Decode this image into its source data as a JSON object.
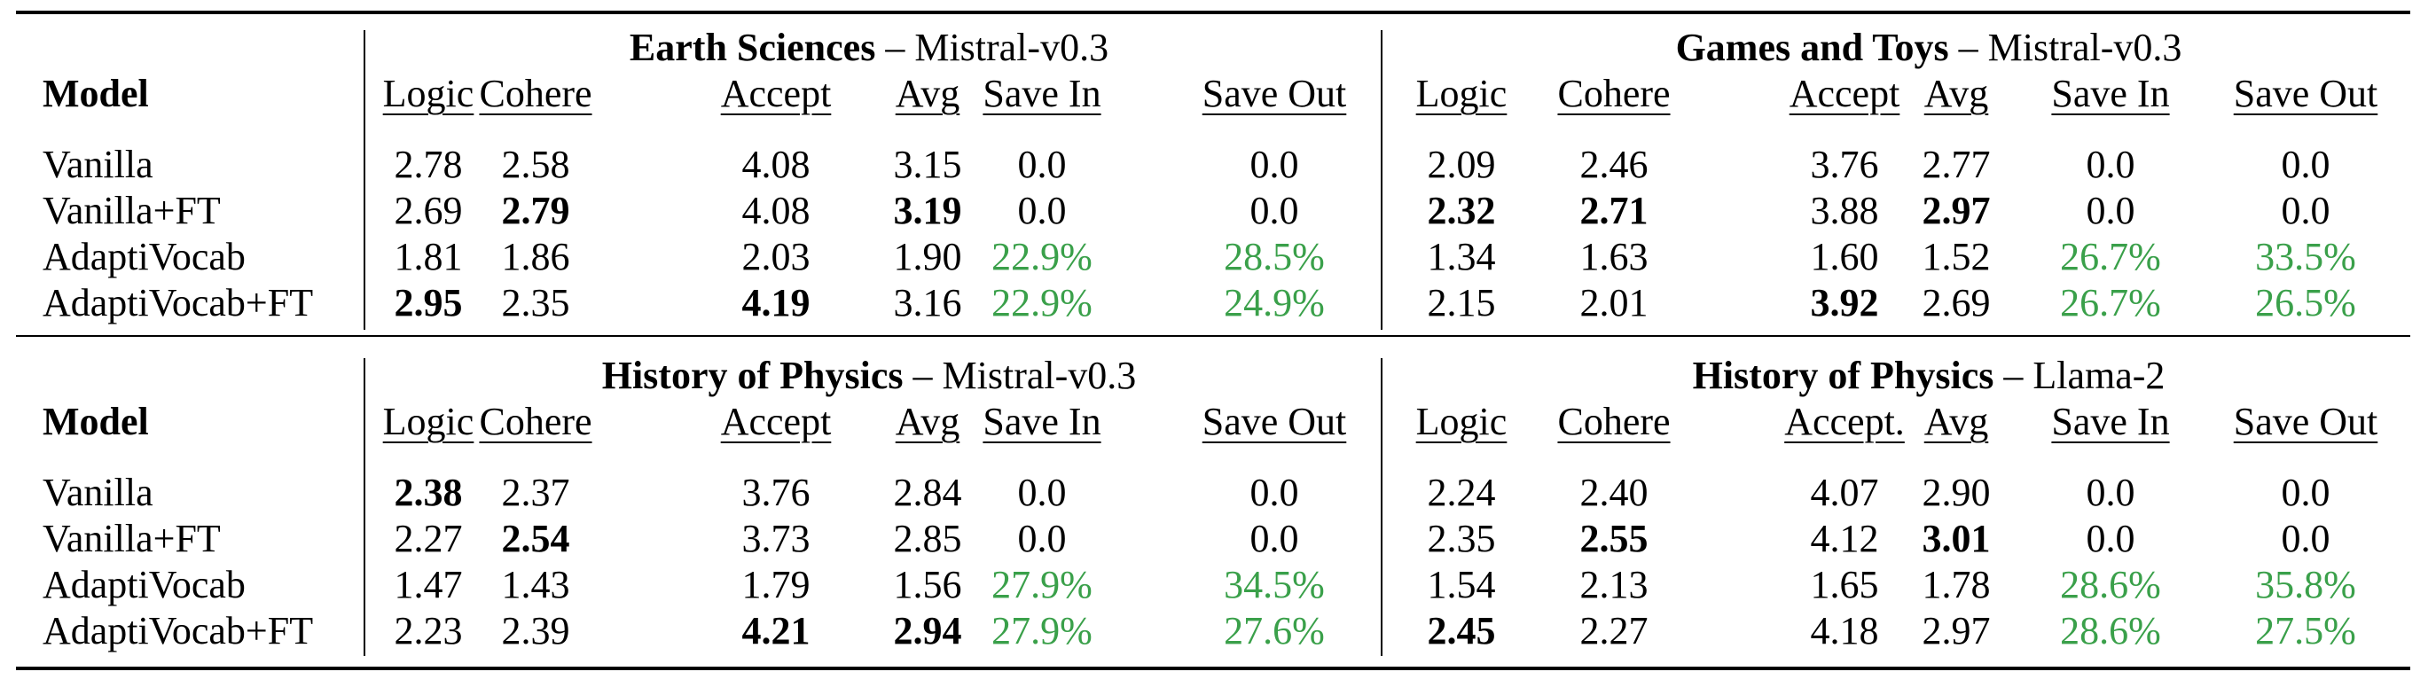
{
  "colors": {
    "green": "#3aa04a",
    "text": "#000000"
  },
  "row_header": "Model",
  "blocks": [
    {
      "panels": [
        {
          "title_bold": "Earth Sciences",
          "title_rest": " – Mistral-v0.3",
          "columns": [
            "Logic",
            "Cohere",
            "Accept",
            "Avg",
            "Save In",
            "Save Out"
          ],
          "rows": [
            [
              "2.78",
              "2.58",
              "4.08",
              "3.15",
              "0.0",
              "0.0"
            ],
            [
              "2.69",
              "2.79",
              "4.08",
              "3.19",
              "0.0",
              "0.0"
            ],
            [
              "1.81",
              "1.86",
              "2.03",
              "1.90",
              "22.9%",
              "28.5%"
            ],
            [
              "2.95",
              "2.35",
              "4.19",
              "3.16",
              "22.9%",
              "24.9%"
            ]
          ]
        },
        {
          "title_bold": "Games and Toys",
          "title_rest": " – Mistral-v0.3",
          "columns": [
            "Logic",
            "Cohere",
            "Accept",
            "Avg",
            "Save In",
            "Save Out"
          ],
          "rows": [
            [
              "2.09",
              "2.46",
              "3.76",
              "2.77",
              "0.0",
              "0.0"
            ],
            [
              "2.32",
              "2.71",
              "3.88",
              "2.97",
              "0.0",
              "0.0"
            ],
            [
              "1.34",
              "1.63",
              "1.60",
              "1.52",
              "26.7%",
              "33.5%"
            ],
            [
              "2.15",
              "2.01",
              "3.92",
              "2.69",
              "26.7%",
              "26.5%"
            ]
          ]
        }
      ],
      "models": [
        "Vanilla",
        "Vanilla+FT",
        "AdaptiVocab",
        "AdaptiVocab+FT"
      ]
    },
    {
      "panels": [
        {
          "title_bold": "History of Physics",
          "title_rest": " – Mistral-v0.3",
          "columns": [
            "Logic",
            "Cohere",
            "Accept",
            "Avg",
            "Save In",
            "Save Out"
          ],
          "rows": [
            [
              "2.38",
              "2.37",
              "3.76",
              "2.84",
              "0.0",
              "0.0"
            ],
            [
              "2.27",
              "2.54",
              "3.73",
              "2.85",
              "0.0",
              "0.0"
            ],
            [
              "1.47",
              "1.43",
              "1.79",
              "1.56",
              "27.9%",
              "34.5%"
            ],
            [
              "2.23",
              "2.39",
              "4.21",
              "2.94",
              "27.9%",
              "27.6%"
            ]
          ]
        },
        {
          "title_bold": "History of Physics",
          "title_rest": " – Llama-2",
          "columns": [
            "Logic",
            "Cohere",
            "Accept.",
            "Avg",
            "Save In",
            "Save Out"
          ],
          "rows": [
            [
              "2.24",
              "2.40",
              "4.07",
              "2.90",
              "0.0",
              "0.0"
            ],
            [
              "2.35",
              "2.55",
              "4.12",
              "3.01",
              "0.0",
              "0.0"
            ],
            [
              "1.54",
              "2.13",
              "1.65",
              "1.78",
              "28.6%",
              "35.8%"
            ],
            [
              "2.45",
              "2.27",
              "4.18",
              "2.97",
              "28.6%",
              "27.5%"
            ]
          ]
        }
      ],
      "models": [
        "Vanilla",
        "Vanilla+FT",
        "AdaptiVocab",
        "AdaptiVocab+FT"
      ]
    }
  ],
  "bold_cells": [
    [
      [
        [
          3,
          0
        ],
        [
          1,
          1
        ],
        [
          3,
          2
        ],
        [
          1,
          3
        ]
      ],
      [
        [
          1,
          0
        ],
        [
          1,
          1
        ],
        [
          3,
          2
        ],
        [
          1,
          3
        ]
      ]
    ],
    [
      [
        [
          0,
          0
        ],
        [
          1,
          1
        ],
        [
          3,
          2
        ],
        [
          3,
          3
        ]
      ],
      [
        [
          3,
          0
        ],
        [
          1,
          1
        ],
        [
          1,
          3
        ]
      ]
    ]
  ],
  "green_columns": [
    4,
    5
  ]
}
